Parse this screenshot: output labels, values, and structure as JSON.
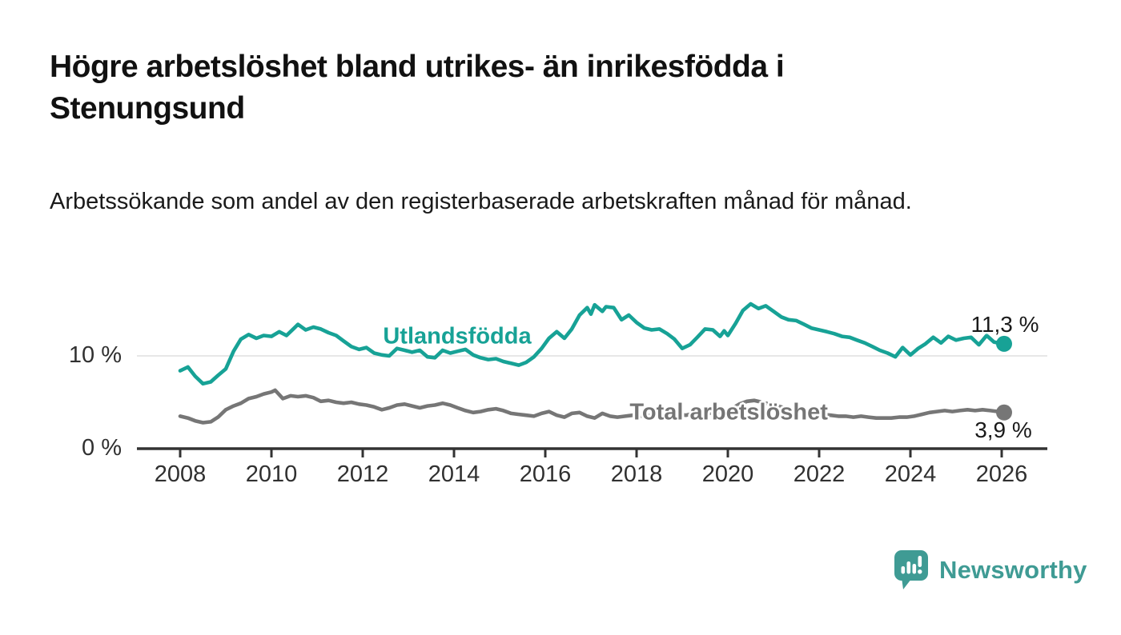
{
  "header": {
    "title": "Högre arbetslöshet bland utrikes- än inrikesfödda i Stenungsund",
    "subtitle": "Arbetssökande som andel av den registerbaserade arbetskraften månad för månad."
  },
  "chart_data": {
    "type": "line",
    "title": "Högre arbetslöshet bland utrikes- än inrikesfödda i Stenungsund",
    "subtitle": "Arbetssökande som andel av den registerbaserade arbetskraften månad för månad.",
    "unit": "%",
    "grid": "single horizontal gridline at 10 %",
    "legend_position": "inline labels on lines",
    "x_axis": {
      "range": [
        2007.1,
        2027.0
      ],
      "ticks": [
        2008,
        2010,
        2012,
        2014,
        2016,
        2018,
        2020,
        2022,
        2024,
        2026
      ]
    },
    "y_axis": {
      "range": [
        0,
        16.5
      ],
      "ticks": [
        {
          "value": 10,
          "label": "10 %"
        },
        {
          "value": 0,
          "label": "0 %"
        }
      ],
      "grid_values": [
        10
      ]
    },
    "series": [
      {
        "name": "Utlandsfödda",
        "color": "#17a296",
        "end_label": "11,3 %",
        "last_value": 11.3,
        "label_anchor": {
          "year": 2014.07,
          "value": 12.07
        },
        "points": [
          [
            2008.0,
            8.4
          ],
          [
            2008.17,
            8.8
          ],
          [
            2008.33,
            7.8
          ],
          [
            2008.5,
            7.0
          ],
          [
            2008.67,
            7.2
          ],
          [
            2008.83,
            7.9
          ],
          [
            2009.0,
            8.6
          ],
          [
            2009.17,
            10.5
          ],
          [
            2009.33,
            11.8
          ],
          [
            2009.5,
            12.3
          ],
          [
            2009.67,
            11.9
          ],
          [
            2009.83,
            12.2
          ],
          [
            2010.0,
            12.1
          ],
          [
            2010.17,
            12.6
          ],
          [
            2010.33,
            12.2
          ],
          [
            2010.5,
            13.0
          ],
          [
            2010.58,
            13.4
          ],
          [
            2010.75,
            12.8
          ],
          [
            2010.92,
            13.1
          ],
          [
            2011.08,
            12.9
          ],
          [
            2011.25,
            12.5
          ],
          [
            2011.42,
            12.2
          ],
          [
            2011.58,
            11.6
          ],
          [
            2011.75,
            11.0
          ],
          [
            2011.92,
            10.7
          ],
          [
            2012.08,
            10.9
          ],
          [
            2012.25,
            10.3
          ],
          [
            2012.42,
            10.1
          ],
          [
            2012.58,
            10.0
          ],
          [
            2012.75,
            10.8
          ],
          [
            2012.92,
            10.6
          ],
          [
            2013.08,
            10.4
          ],
          [
            2013.25,
            10.6
          ],
          [
            2013.42,
            9.9
          ],
          [
            2013.58,
            9.8
          ],
          [
            2013.75,
            10.6
          ],
          [
            2013.92,
            10.3
          ],
          [
            2014.08,
            10.5
          ],
          [
            2014.25,
            10.7
          ],
          [
            2014.42,
            10.1
          ],
          [
            2014.58,
            9.8
          ],
          [
            2014.75,
            9.6
          ],
          [
            2014.92,
            9.7
          ],
          [
            2015.08,
            9.4
          ],
          [
            2015.25,
            9.2
          ],
          [
            2015.42,
            9.0
          ],
          [
            2015.58,
            9.3
          ],
          [
            2015.75,
            9.9
          ],
          [
            2015.92,
            10.8
          ],
          [
            2016.08,
            11.9
          ],
          [
            2016.25,
            12.6
          ],
          [
            2016.42,
            11.9
          ],
          [
            2016.58,
            12.9
          ],
          [
            2016.75,
            14.4
          ],
          [
            2016.92,
            15.2
          ],
          [
            2017.0,
            14.5
          ],
          [
            2017.08,
            15.5
          ],
          [
            2017.25,
            14.8
          ],
          [
            2017.33,
            15.3
          ],
          [
            2017.5,
            15.2
          ],
          [
            2017.67,
            13.9
          ],
          [
            2017.83,
            14.4
          ],
          [
            2018.0,
            13.6
          ],
          [
            2018.17,
            13.0
          ],
          [
            2018.33,
            12.8
          ],
          [
            2018.5,
            12.9
          ],
          [
            2018.67,
            12.4
          ],
          [
            2018.83,
            11.8
          ],
          [
            2019.0,
            10.8
          ],
          [
            2019.17,
            11.2
          ],
          [
            2019.33,
            12.0
          ],
          [
            2019.5,
            12.9
          ],
          [
            2019.67,
            12.8
          ],
          [
            2019.83,
            12.1
          ],
          [
            2019.92,
            12.7
          ],
          [
            2020.0,
            12.2
          ],
          [
            2020.17,
            13.5
          ],
          [
            2020.33,
            14.9
          ],
          [
            2020.5,
            15.6
          ],
          [
            2020.67,
            15.1
          ],
          [
            2020.83,
            15.4
          ],
          [
            2021.0,
            14.8
          ],
          [
            2021.17,
            14.2
          ],
          [
            2021.33,
            13.9
          ],
          [
            2021.5,
            13.8
          ],
          [
            2021.67,
            13.4
          ],
          [
            2021.83,
            13.0
          ],
          [
            2022.0,
            12.8
          ],
          [
            2022.17,
            12.6
          ],
          [
            2022.33,
            12.4
          ],
          [
            2022.5,
            12.1
          ],
          [
            2022.67,
            12.0
          ],
          [
            2022.83,
            11.7
          ],
          [
            2023.0,
            11.4
          ],
          [
            2023.17,
            11.0
          ],
          [
            2023.33,
            10.6
          ],
          [
            2023.5,
            10.3
          ],
          [
            2023.67,
            9.9
          ],
          [
            2023.83,
            10.9
          ],
          [
            2024.0,
            10.1
          ],
          [
            2024.17,
            10.8
          ],
          [
            2024.33,
            11.3
          ],
          [
            2024.5,
            12.0
          ],
          [
            2024.67,
            11.4
          ],
          [
            2024.83,
            12.1
          ],
          [
            2025.0,
            11.7
          ],
          [
            2025.17,
            11.9
          ],
          [
            2025.33,
            12.0
          ],
          [
            2025.5,
            11.2
          ],
          [
            2025.67,
            12.2
          ],
          [
            2025.83,
            11.5
          ],
          [
            2026.0,
            11.3
          ]
        ]
      },
      {
        "name": "Total arbetslöshet",
        "color": "#767676",
        "end_label": "3,9 %",
        "last_value": 3.9,
        "label_anchor": {
          "year": 2020.02,
          "value": 3.88
        },
        "points": [
          [
            2008.0,
            3.5
          ],
          [
            2008.17,
            3.3
          ],
          [
            2008.33,
            3.0
          ],
          [
            2008.5,
            2.8
          ],
          [
            2008.67,
            2.9
          ],
          [
            2008.83,
            3.4
          ],
          [
            2009.0,
            4.2
          ],
          [
            2009.17,
            4.6
          ],
          [
            2009.33,
            4.9
          ],
          [
            2009.5,
            5.4
          ],
          [
            2009.67,
            5.6
          ],
          [
            2009.83,
            5.9
          ],
          [
            2010.0,
            6.1
          ],
          [
            2010.08,
            6.3
          ],
          [
            2010.25,
            5.4
          ],
          [
            2010.42,
            5.7
          ],
          [
            2010.58,
            5.6
          ],
          [
            2010.75,
            5.7
          ],
          [
            2010.92,
            5.5
          ],
          [
            2011.08,
            5.1
          ],
          [
            2011.25,
            5.2
          ],
          [
            2011.42,
            5.0
          ],
          [
            2011.58,
            4.9
          ],
          [
            2011.75,
            5.0
          ],
          [
            2011.92,
            4.8
          ],
          [
            2012.08,
            4.7
          ],
          [
            2012.25,
            4.5
          ],
          [
            2012.42,
            4.2
          ],
          [
            2012.58,
            4.4
          ],
          [
            2012.75,
            4.7
          ],
          [
            2012.92,
            4.8
          ],
          [
            2013.08,
            4.6
          ],
          [
            2013.25,
            4.4
          ],
          [
            2013.42,
            4.6
          ],
          [
            2013.58,
            4.7
          ],
          [
            2013.75,
            4.9
          ],
          [
            2013.92,
            4.7
          ],
          [
            2014.08,
            4.4
          ],
          [
            2014.25,
            4.1
          ],
          [
            2014.42,
            3.9
          ],
          [
            2014.58,
            4.0
          ],
          [
            2014.75,
            4.2
          ],
          [
            2014.92,
            4.3
          ],
          [
            2015.08,
            4.1
          ],
          [
            2015.25,
            3.8
          ],
          [
            2015.42,
            3.7
          ],
          [
            2015.58,
            3.6
          ],
          [
            2015.75,
            3.5
          ],
          [
            2015.92,
            3.8
          ],
          [
            2016.08,
            4.0
          ],
          [
            2016.25,
            3.6
          ],
          [
            2016.42,
            3.4
          ],
          [
            2016.58,
            3.8
          ],
          [
            2016.75,
            3.9
          ],
          [
            2016.92,
            3.5
          ],
          [
            2017.08,
            3.3
          ],
          [
            2017.25,
            3.8
          ],
          [
            2017.42,
            3.5
          ],
          [
            2017.58,
            3.4
          ],
          [
            2017.75,
            3.5
          ],
          [
            2017.92,
            3.6
          ],
          [
            2018.08,
            3.5
          ],
          [
            2018.25,
            3.6
          ],
          [
            2018.42,
            3.5
          ],
          [
            2018.58,
            3.7
          ],
          [
            2018.75,
            3.6
          ],
          [
            2018.92,
            3.7
          ],
          [
            2019.08,
            3.6
          ],
          [
            2019.25,
            3.8
          ],
          [
            2019.42,
            3.7
          ],
          [
            2019.58,
            3.8
          ],
          [
            2019.75,
            3.9
          ],
          [
            2019.92,
            4.0
          ],
          [
            2020.08,
            4.3
          ],
          [
            2020.25,
            4.8
          ],
          [
            2020.42,
            5.1
          ],
          [
            2020.58,
            5.2
          ],
          [
            2020.75,
            5.0
          ],
          [
            2020.92,
            4.8
          ],
          [
            2021.08,
            4.6
          ],
          [
            2021.25,
            4.4
          ],
          [
            2021.42,
            4.2
          ],
          [
            2021.58,
            4.0
          ],
          [
            2021.75,
            3.9
          ],
          [
            2021.92,
            3.8
          ],
          [
            2022.08,
            3.7
          ],
          [
            2022.25,
            3.6
          ],
          [
            2022.42,
            3.5
          ],
          [
            2022.58,
            3.5
          ],
          [
            2022.75,
            3.4
          ],
          [
            2022.92,
            3.5
          ],
          [
            2023.08,
            3.4
          ],
          [
            2023.25,
            3.3
          ],
          [
            2023.42,
            3.3
          ],
          [
            2023.58,
            3.3
          ],
          [
            2023.75,
            3.4
          ],
          [
            2023.92,
            3.4
          ],
          [
            2024.08,
            3.5
          ],
          [
            2024.25,
            3.7
          ],
          [
            2024.42,
            3.9
          ],
          [
            2024.58,
            4.0
          ],
          [
            2024.75,
            4.1
          ],
          [
            2024.92,
            4.0
          ],
          [
            2025.08,
            4.1
          ],
          [
            2025.25,
            4.2
          ],
          [
            2025.42,
            4.1
          ],
          [
            2025.58,
            4.2
          ],
          [
            2025.75,
            4.1
          ],
          [
            2025.92,
            4.0
          ],
          [
            2026.0,
            3.9
          ]
        ]
      }
    ]
  },
  "footer": {
    "brand": "Newsworthy",
    "brand_color": "#3f9b94",
    "logo": "newsworthy-speech-bubble-bar-chart-icon"
  }
}
